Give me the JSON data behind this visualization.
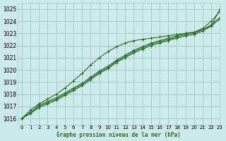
{
  "title": "Graphe pression niveau de la mer (hPa)",
  "background_color": "#cceaea",
  "grid_color": "#aacccc",
  "line_color": "#2d6e2d",
  "xlim": [
    -0.5,
    23
  ],
  "ylim": [
    1015.5,
    1025.5
  ],
  "yticks": [
    1016,
    1017,
    1018,
    1019,
    1020,
    1021,
    1022,
    1023,
    1024,
    1025
  ],
  "xticks": [
    0,
    1,
    2,
    3,
    4,
    5,
    6,
    7,
    8,
    9,
    10,
    11,
    12,
    13,
    14,
    15,
    16,
    17,
    18,
    19,
    20,
    21,
    22,
    23
  ],
  "series": [
    [
      1016.0,
      1016.5,
      1017.1,
      1017.4,
      1017.7,
      1018.1,
      1018.5,
      1018.9,
      1019.4,
      1019.9,
      1020.3,
      1020.8,
      1021.2,
      1021.6,
      1021.9,
      1022.2,
      1022.4,
      1022.6,
      1022.8,
      1023.0,
      1023.1,
      1023.4,
      1024.0,
      1024.8
    ],
    [
      1016.0,
      1016.5,
      1017.0,
      1017.3,
      1017.6,
      1018.0,
      1018.4,
      1018.8,
      1019.3,
      1019.8,
      1020.2,
      1020.7,
      1021.1,
      1021.5,
      1021.8,
      1022.1,
      1022.3,
      1022.5,
      1022.7,
      1022.9,
      1023.0,
      1023.3,
      1023.7,
      1024.3
    ],
    [
      1016.0,
      1016.4,
      1016.9,
      1017.2,
      1017.5,
      1017.9,
      1018.3,
      1018.7,
      1019.2,
      1019.7,
      1020.1,
      1020.6,
      1021.0,
      1021.4,
      1021.7,
      1022.0,
      1022.2,
      1022.4,
      1022.6,
      1022.8,
      1022.9,
      1023.2,
      1023.6,
      1024.2
    ],
    [
      1016.0,
      1016.7,
      1017.2,
      1017.6,
      1018.0,
      1018.5,
      1019.1,
      1019.7,
      1020.4,
      1021.0,
      1021.5,
      1021.9,
      1022.2,
      1022.4,
      1022.5,
      1022.6,
      1022.7,
      1022.8,
      1022.9,
      1023.0,
      1023.1,
      1023.3,
      1023.6,
      1025.0
    ]
  ]
}
